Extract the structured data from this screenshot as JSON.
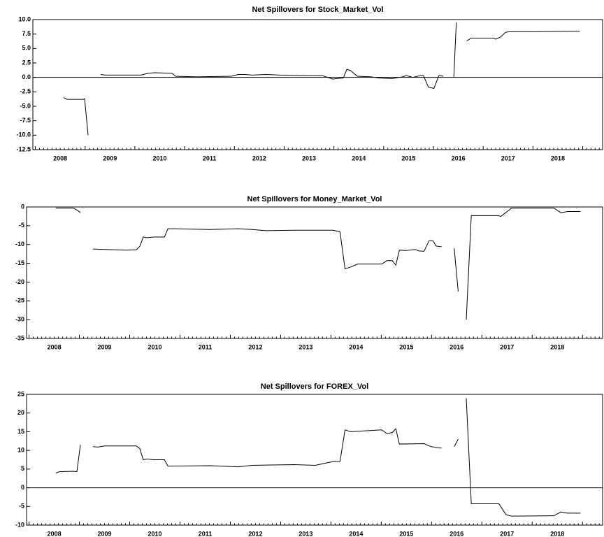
{
  "chart_data": [
    {
      "type": "line",
      "title": "Net Spillovers for Stock_Market_Vol",
      "color": "#000000",
      "x": [
        2008.57,
        2008.64,
        2008.96,
        2008.99,
        2009.06,
        null,
        2009.31,
        2009.41,
        2010.12,
        2010.26,
        2010.4,
        2010.75,
        2010.82,
        2011.24,
        2011.94,
        2012.08,
        2012.22,
        2012.36,
        2012.64,
        2012.92,
        2013.49,
        2013.77,
        2013.84,
        2013.98,
        2014.05,
        2014.19,
        2014.26,
        2014.33,
        2014.47,
        2014.75,
        2014.89,
        2015.17,
        2015.38,
        2015.45,
        2015.59,
        2015.73,
        2015.8,
        2015.9,
        2016.01,
        2016.11,
        2016.2,
        null,
        2016.41,
        2016.46,
        null,
        2016.67,
        2016.76,
        2017.21,
        2017.25,
        2017.35,
        2017.45,
        2017.53,
        2017.98,
        2018.94
      ],
      "values": [
        -3.5,
        -3.8,
        -3.8,
        -3.7,
        -10,
        null,
        0.5,
        0.4,
        0.4,
        0.7,
        0.8,
        0.7,
        0.2,
        0.1,
        0.2,
        0.5,
        0.5,
        0.4,
        0.5,
        0.4,
        0.3,
        0.3,
        0.1,
        -0.3,
        -0.2,
        -0.1,
        1.4,
        1.2,
        0.2,
        0.1,
        -0.1,
        -0.2,
        0.1,
        0.3,
        0.0,
        0.3,
        0.3,
        -1.7,
        -1.9,
        0.3,
        0.2,
        null,
        0.1,
        9.5,
        null,
        6.3,
        6.8,
        6.8,
        6.6,
        7.0,
        7.8,
        7.9,
        7.9,
        8.0
      ],
      "xlim": [
        2007.95,
        2019.4
      ],
      "xticks": [
        {
          "value": 2008.5,
          "label": "2008"
        },
        {
          "value": 2009.5,
          "label": "2009"
        },
        {
          "value": 2010.5,
          "label": "2010"
        },
        {
          "value": 2011.5,
          "label": "2011"
        },
        {
          "value": 2012.5,
          "label": "2012"
        },
        {
          "value": 2013.5,
          "label": "2013"
        },
        {
          "value": 2014.5,
          "label": "2014"
        },
        {
          "value": 2015.5,
          "label": "2015"
        },
        {
          "value": 2016.5,
          "label": "2016"
        },
        {
          "value": 2017.5,
          "label": "2017"
        },
        {
          "value": 2018.5,
          "label": "2018"
        }
      ],
      "ylim": [
        -12.5,
        10
      ],
      "yticks": [
        {
          "value": 10,
          "label": "10.0"
        },
        7.5,
        {
          "value": 5,
          "label": "5.0"
        },
        2.5,
        {
          "value": 0,
          "label": "0.0"
        },
        -2.5,
        {
          "value": -5,
          "label": "-5.0"
        },
        -7.5,
        {
          "value": -10,
          "label": "-10.0"
        },
        -12.5
      ]
    },
    {
      "type": "line",
      "title": "Net Spillovers for Money_Market_Vol",
      "color": "#000000",
      "x": [
        2008.53,
        2008.88,
        2008.95,
        2009.02,
        null,
        2009.27,
        2009.5,
        2009.92,
        2010.13,
        2010.2,
        2010.27,
        2010.34,
        2010.48,
        2010.69,
        2010.76,
        2010.9,
        2011.6,
        2012.16,
        2012.43,
        2012.71,
        2013.27,
        2014.04,
        2014.18,
        2014.28,
        2014.39,
        2014.53,
        2015.01,
        2015.11,
        2015.22,
        2015.29,
        2015.36,
        2015.5,
        2015.67,
        2015.75,
        2015.85,
        2015.95,
        2016.03,
        2016.09,
        2016.2,
        null,
        2016.45,
        2016.53,
        null,
        2016.69,
        2016.79,
        2017.32,
        2017.38,
        2017.59,
        2018.43,
        2018.57,
        2018.71,
        2018.96
      ],
      "values": [
        -0.3,
        -0.3,
        -0.8,
        -1.5,
        null,
        -11.2,
        -11.3,
        -11.5,
        -11.4,
        -10.5,
        -8,
        -8.2,
        -8,
        -8,
        -5.8,
        -5.8,
        -6,
        -5.8,
        -6.0,
        -6.3,
        -6.2,
        -6.2,
        -6.6,
        -16.5,
        -16,
        -15.2,
        -15.2,
        -14.3,
        -14.3,
        -15.5,
        -11.5,
        -11.6,
        -11.3,
        -11.7,
        -11.8,
        -9,
        -9,
        -10.4,
        -10.6,
        null,
        -11,
        -22.5,
        null,
        -30,
        -2.3,
        -2.3,
        -2.5,
        -0.3,
        -0.3,
        -1.5,
        -1.2,
        -1.2
      ],
      "xlim": [
        2007.95,
        2019.4
      ],
      "xticks": [
        {
          "value": 2008.5,
          "label": "2008"
        },
        {
          "value": 2009.5,
          "label": "2009"
        },
        {
          "value": 2010.5,
          "label": "2010"
        },
        {
          "value": 2011.5,
          "label": "2011"
        },
        {
          "value": 2012.5,
          "label": "2012"
        },
        {
          "value": 2013.5,
          "label": "2013"
        },
        {
          "value": 2014.5,
          "label": "2014"
        },
        {
          "value": 2015.5,
          "label": "2015"
        },
        {
          "value": 2016.5,
          "label": "2016"
        },
        {
          "value": 2017.5,
          "label": "2017"
        },
        {
          "value": 2018.5,
          "label": "2018"
        }
      ],
      "ylim": [
        -35,
        0
      ],
      "yticks": [
        0,
        -5,
        -10,
        -15,
        -20,
        -25,
        -30,
        -35
      ]
    },
    {
      "type": "line",
      "title": "Net Spillovers for FOREX_Vol",
      "color": "#000000",
      "x": [
        2008.53,
        2008.6,
        2008.88,
        2008.95,
        2009.02,
        null,
        2009.27,
        2009.37,
        2009.5,
        2010.13,
        2010.2,
        2010.27,
        2010.34,
        2010.48,
        2010.69,
        2010.76,
        2011.6,
        2012.16,
        2012.43,
        2013.27,
        2013.69,
        2014.04,
        2014.18,
        2014.28,
        2014.39,
        2015.01,
        2015.11,
        2015.22,
        2015.29,
        2015.36,
        2015.85,
        2015.99,
        2016.2,
        null,
        2016.45,
        2016.53,
        null,
        2016.69,
        2016.79,
        2017.34,
        2017.48,
        2017.59,
        2018.43,
        2018.57,
        2018.71,
        2018.96
      ],
      "values": [
        3.9,
        4.3,
        4.4,
        4.3,
        11.5,
        null,
        11,
        10.9,
        11.2,
        11.2,
        10.5,
        7.5,
        7.7,
        7.5,
        7.5,
        5.8,
        5.9,
        5.6,
        6.0,
        6.2,
        6.0,
        7.0,
        7.0,
        15.5,
        15.0,
        15.5,
        14.5,
        14.8,
        15.8,
        11.7,
        11.8,
        11,
        10.6,
        null,
        11,
        13,
        null,
        24,
        -4.3,
        -4.3,
        -7.2,
        -7.6,
        -7.5,
        -6.5,
        -6.8,
        -6.8
      ],
      "xlim": [
        2007.95,
        2019.4
      ],
      "xticks": [
        {
          "value": 2008.5,
          "label": "2008"
        },
        {
          "value": 2009.5,
          "label": "2009"
        },
        {
          "value": 2010.5,
          "label": "2010"
        },
        {
          "value": 2011.5,
          "label": "2011"
        },
        {
          "value": 2012.5,
          "label": "2012"
        },
        {
          "value": 2013.5,
          "label": "2013"
        },
        {
          "value": 2014.5,
          "label": "2014"
        },
        {
          "value": 2015.5,
          "label": "2015"
        },
        {
          "value": 2016.5,
          "label": "2016"
        },
        {
          "value": 2017.5,
          "label": "2017"
        },
        {
          "value": 2018.5,
          "label": "2018"
        }
      ],
      "ylim": [
        -10,
        25
      ],
      "yticks": [
        25,
        20,
        15,
        10,
        5,
        0,
        -5,
        -10
      ]
    }
  ]
}
